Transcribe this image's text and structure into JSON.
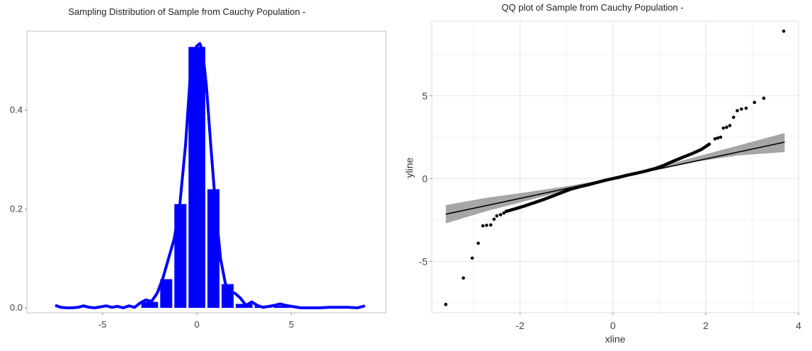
{
  "chart_data": [
    {
      "type": "bar",
      "title": "Sampling Distribution of Sample from Cauchy Population -",
      "xlabel": "",
      "ylabel": "",
      "xlim": [
        -9,
        10
      ],
      "ylim": [
        -0.01,
        0.56
      ],
      "x_ticks": [
        "-5",
        "0",
        "5"
      ],
      "x_tick_values": [
        -5,
        0,
        5
      ],
      "y_ticks": [
        "0.0",
        "0.2",
        "0.4"
      ],
      "y_tick_values": [
        0.0,
        0.2,
        0.4
      ],
      "grid": false,
      "bar_color": "#0000ff",
      "line_color": "#0000ff",
      "bins": [
        {
          "x0": -3.0,
          "x1": -2.0,
          "y": 0.012
        },
        {
          "x0": -2.0,
          "x1": -1.25,
          "y": 0.058
        },
        {
          "x0": -1.25,
          "x1": -0.5,
          "y": 0.21
        },
        {
          "x0": -0.5,
          "x1": 0.5,
          "y": 0.528
        },
        {
          "x0": 0.5,
          "x1": 1.25,
          "y": 0.24
        },
        {
          "x0": 1.25,
          "x1": 2.0,
          "y": 0.048
        },
        {
          "x0": 2.0,
          "x1": 3.0,
          "y": 0.008
        },
        {
          "x0": 3.0,
          "x1": 4.0,
          "y": 0.004
        },
        {
          "x0": 4.0,
          "x1": 5.0,
          "y": 0.004
        }
      ],
      "density_line": {
        "x": [
          -7.5,
          -7.2,
          -6.9,
          -6.6,
          -6.3,
          -6.0,
          -5.7,
          -5.4,
          -5.1,
          -4.8,
          -4.5,
          -4.2,
          -3.9,
          -3.6,
          -3.3,
          -3.0,
          -2.7,
          -2.4,
          -2.1,
          -1.8,
          -1.5,
          -1.2,
          -0.9,
          -0.6,
          -0.35,
          -0.15,
          0.0,
          0.15,
          0.3,
          0.5,
          0.75,
          1.0,
          1.25,
          1.5,
          1.75,
          2.0,
          2.3,
          2.6,
          2.9,
          3.2,
          3.5,
          3.8,
          4.1,
          4.4,
          4.7,
          5.0,
          5.5,
          6.0,
          6.5,
          7.0,
          7.5,
          8.0,
          8.5,
          8.9
        ],
        "y": [
          0.005,
          0.001,
          0.0,
          0.0,
          0.001,
          0.004,
          0.001,
          0.0,
          0.002,
          0.004,
          0.001,
          0.003,
          0.0,
          0.004,
          0.001,
          0.01,
          0.016,
          0.013,
          0.03,
          0.06,
          0.1,
          0.14,
          0.21,
          0.33,
          0.47,
          0.52,
          0.53,
          0.535,
          0.52,
          0.45,
          0.32,
          0.2,
          0.1,
          0.05,
          0.03,
          0.03,
          0.02,
          0.005,
          0.012,
          0.005,
          0.001,
          0.003,
          0.005,
          0.008,
          0.005,
          0.003,
          0.0,
          0.0,
          0.0,
          0.001,
          0.001,
          0.001,
          0.0,
          0.004
        ]
      }
    },
    {
      "type": "scatter",
      "title": "QQ plot of Sample from Cauchy Population -",
      "xlabel": "xline",
      "ylabel": "yline",
      "xlim": [
        -3.9,
        4.0
      ],
      "ylim": [
        -8.1,
        9.5
      ],
      "x_ticks": [
        "-2",
        "0",
        "2",
        "4"
      ],
      "x_tick_values": [
        -2,
        0,
        2,
        4
      ],
      "y_ticks": [
        "-5",
        "0",
        "5"
      ],
      "y_tick_values": [
        -5,
        0,
        5
      ],
      "grid": true,
      "point_color": "#000000",
      "fit_line": {
        "x": [
          -3.6,
          3.7
        ],
        "y": [
          -2.15,
          2.2
        ],
        "color": "#000000"
      },
      "confidence_band": {
        "x": [
          -3.6,
          -2.7,
          -1.8,
          -0.9,
          0.0,
          0.9,
          1.8,
          2.7,
          3.7
        ],
        "lower": [
          -2.7,
          -1.95,
          -1.3,
          -0.64,
          -0.05,
          0.5,
          1.02,
          1.4,
          1.6
        ],
        "upper": [
          -1.6,
          -1.15,
          -0.8,
          -0.42,
          0.05,
          0.65,
          1.32,
          2.0,
          2.75
        ],
        "color": "#a6a6a6"
      },
      "points": [
        [
          -3.6,
          -7.6
        ],
        [
          -3.22,
          -6.0
        ],
        [
          -3.03,
          -4.8
        ],
        [
          -2.9,
          -3.9
        ],
        [
          -2.8,
          -2.85
        ],
        [
          -2.72,
          -2.82
        ],
        [
          -2.63,
          -2.8
        ],
        [
          -2.56,
          -2.45
        ],
        [
          -2.5,
          -2.25
        ],
        [
          -2.42,
          -2.18
        ],
        [
          -2.35,
          -2.08
        ],
        [
          -3.6,
          -7.6
        ],
        [
          3.68,
          8.9
        ],
        [
          3.25,
          4.85
        ],
        [
          3.05,
          4.6
        ],
        [
          2.87,
          4.25
        ],
        [
          2.77,
          4.2
        ],
        [
          2.68,
          4.1
        ],
        [
          2.6,
          3.7
        ],
        [
          2.52,
          3.2
        ],
        [
          2.45,
          3.1
        ],
        [
          2.38,
          3.05
        ],
        [
          2.32,
          2.5
        ],
        [
          2.26,
          2.45
        ],
        [
          2.2,
          2.4
        ]
      ],
      "point_curve": {
        "x": [
          -2.3,
          -2.1,
          -1.9,
          -1.7,
          -1.5,
          -1.3,
          -1.1,
          -0.9,
          -0.7,
          -0.5,
          -0.3,
          -0.1,
          0.1,
          0.3,
          0.5,
          0.7,
          0.9,
          1.1,
          1.3,
          1.5,
          1.7,
          1.9,
          2.1
        ],
        "y": [
          -1.98,
          -1.82,
          -1.65,
          -1.46,
          -1.27,
          -1.06,
          -0.84,
          -0.63,
          -0.48,
          -0.35,
          -0.2,
          -0.06,
          0.06,
          0.2,
          0.32,
          0.45,
          0.6,
          0.8,
          1.05,
          1.28,
          1.5,
          1.75,
          2.12
        ]
      }
    }
  ]
}
